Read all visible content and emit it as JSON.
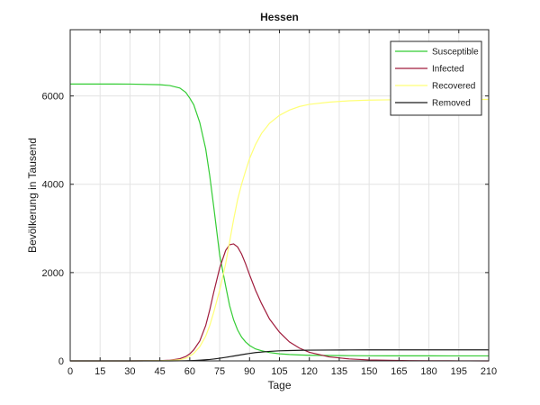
{
  "chart_data": {
    "type": "line",
    "title": "Hessen",
    "xlabel": "Tage",
    "ylabel": "Bevölkerung in Tausend",
    "xlim": [
      0,
      210
    ],
    "ylim": [
      0,
      7500
    ],
    "xticks": [
      0,
      15,
      30,
      45,
      60,
      75,
      90,
      105,
      120,
      135,
      150,
      165,
      180,
      195,
      210
    ],
    "yticks": [
      0,
      2000,
      4000,
      6000
    ],
    "grid": true,
    "legend_position": "top-right",
    "x": [
      0,
      15,
      30,
      45,
      50,
      55,
      58,
      60,
      62,
      65,
      68,
      70,
      72,
      75,
      78,
      80,
      82,
      84,
      86,
      88,
      90,
      93,
      96,
      100,
      105,
      110,
      115,
      120,
      130,
      140,
      150,
      160,
      170,
      180,
      190,
      200,
      210
    ],
    "series": [
      {
        "name": "Susceptible",
        "color": "#33cc33",
        "values": [
          6270,
          6270,
          6268,
          6255,
          6235,
          6180,
          6080,
          5950,
          5800,
          5400,
          4800,
          4200,
          3500,
          2400,
          1700,
          1250,
          930,
          700,
          540,
          430,
          350,
          270,
          230,
          190,
          160,
          145,
          135,
          128,
          122,
          118,
          116,
          115,
          114,
          114,
          113,
          113,
          113
        ]
      },
      {
        "name": "Infected",
        "color": "#a01c3c",
        "values": [
          0,
          0,
          0,
          5,
          15,
          50,
          100,
          160,
          250,
          450,
          800,
          1150,
          1550,
          2100,
          2500,
          2630,
          2650,
          2580,
          2420,
          2200,
          1950,
          1600,
          1300,
          950,
          650,
          430,
          290,
          195,
          90,
          45,
          22,
          12,
          6,
          3,
          2,
          1,
          0
        ]
      },
      {
        "name": "Recovered",
        "color": "#ffff77",
        "values": [
          0,
          0,
          0,
          5,
          10,
          25,
          60,
          110,
          170,
          320,
          560,
          800,
          1100,
          1600,
          2200,
          2700,
          3200,
          3650,
          4000,
          4300,
          4580,
          4900,
          5150,
          5380,
          5560,
          5680,
          5760,
          5810,
          5860,
          5890,
          5905,
          5912,
          5916,
          5918,
          5919,
          5920,
          5920
        ]
      },
      {
        "name": "Removed",
        "color": "#1a1a1a",
        "values": [
          0,
          0,
          0,
          0,
          0,
          1,
          3,
          5,
          8,
          15,
          25,
          32,
          42,
          60,
          80,
          95,
          110,
          125,
          140,
          155,
          170,
          188,
          200,
          215,
          228,
          235,
          240,
          243,
          246,
          248,
          249,
          250,
          250,
          250,
          250,
          250,
          250
        ]
      }
    ]
  }
}
